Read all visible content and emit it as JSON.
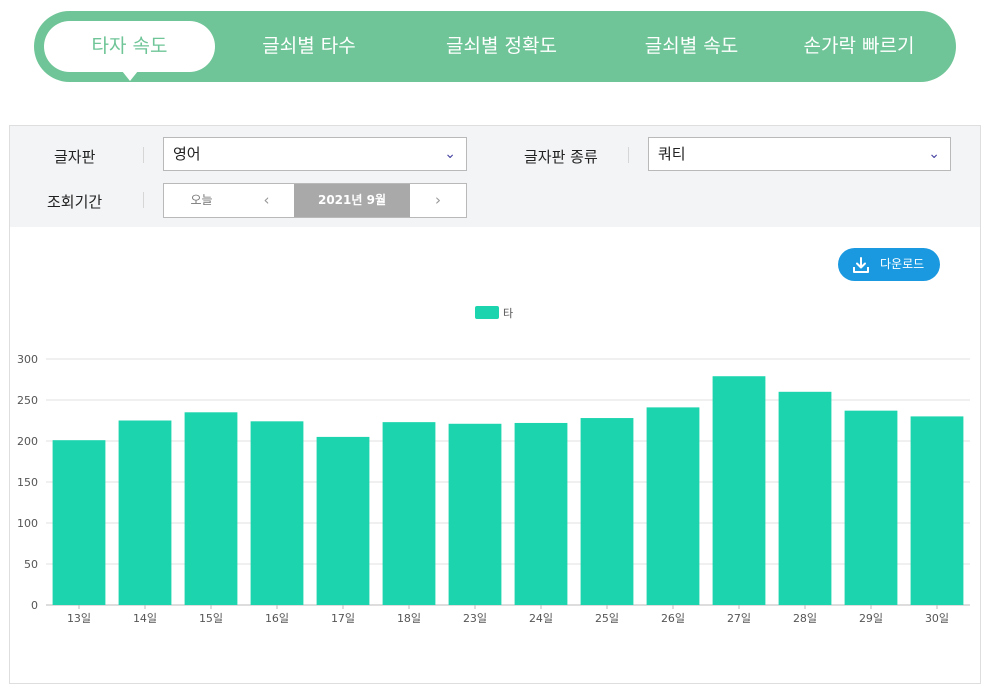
{
  "tabs": [
    {
      "label": "타자 속도",
      "active": true
    },
    {
      "label": "글쇠별 타수",
      "active": false
    },
    {
      "label": "글쇠별 정확도",
      "active": false
    },
    {
      "label": "글쇠별 속도",
      "active": false
    },
    {
      "label": "손가락 빠르기",
      "active": false
    }
  ],
  "filters": {
    "keyboard_label": "글자판",
    "keyboard_value": "영어",
    "layout_label": "글자판 종류",
    "layout_value": "쿼티",
    "period_label": "조회기간",
    "today_label": "오늘",
    "prev_icon": "chevron-left-icon",
    "next_icon": "chevron-right-icon",
    "current_period": "2021년 9월"
  },
  "download": {
    "label": "다운로드",
    "icon": "download-icon"
  },
  "colors": {
    "tab_bar": "#6fc597",
    "bar": "#1cd4ae",
    "download": "#1a99e0",
    "select_chevron": "#4a47a3"
  },
  "chart_data": {
    "type": "bar",
    "categories": [
      "13일",
      "14일",
      "15일",
      "16일",
      "17일",
      "18일",
      "23일",
      "24일",
      "25일",
      "26일",
      "27일",
      "28일",
      "29일",
      "30일"
    ],
    "series": [
      {
        "name": "타",
        "values": [
          201,
          225,
          235,
          224,
          205,
          223,
          221,
          222,
          228,
          241,
          279,
          260,
          237,
          230
        ]
      }
    ],
    "ylim": [
      0,
      300
    ],
    "yticks": [
      0,
      50,
      100,
      150,
      200,
      250,
      300
    ],
    "grid": true,
    "legend": "top-center"
  }
}
